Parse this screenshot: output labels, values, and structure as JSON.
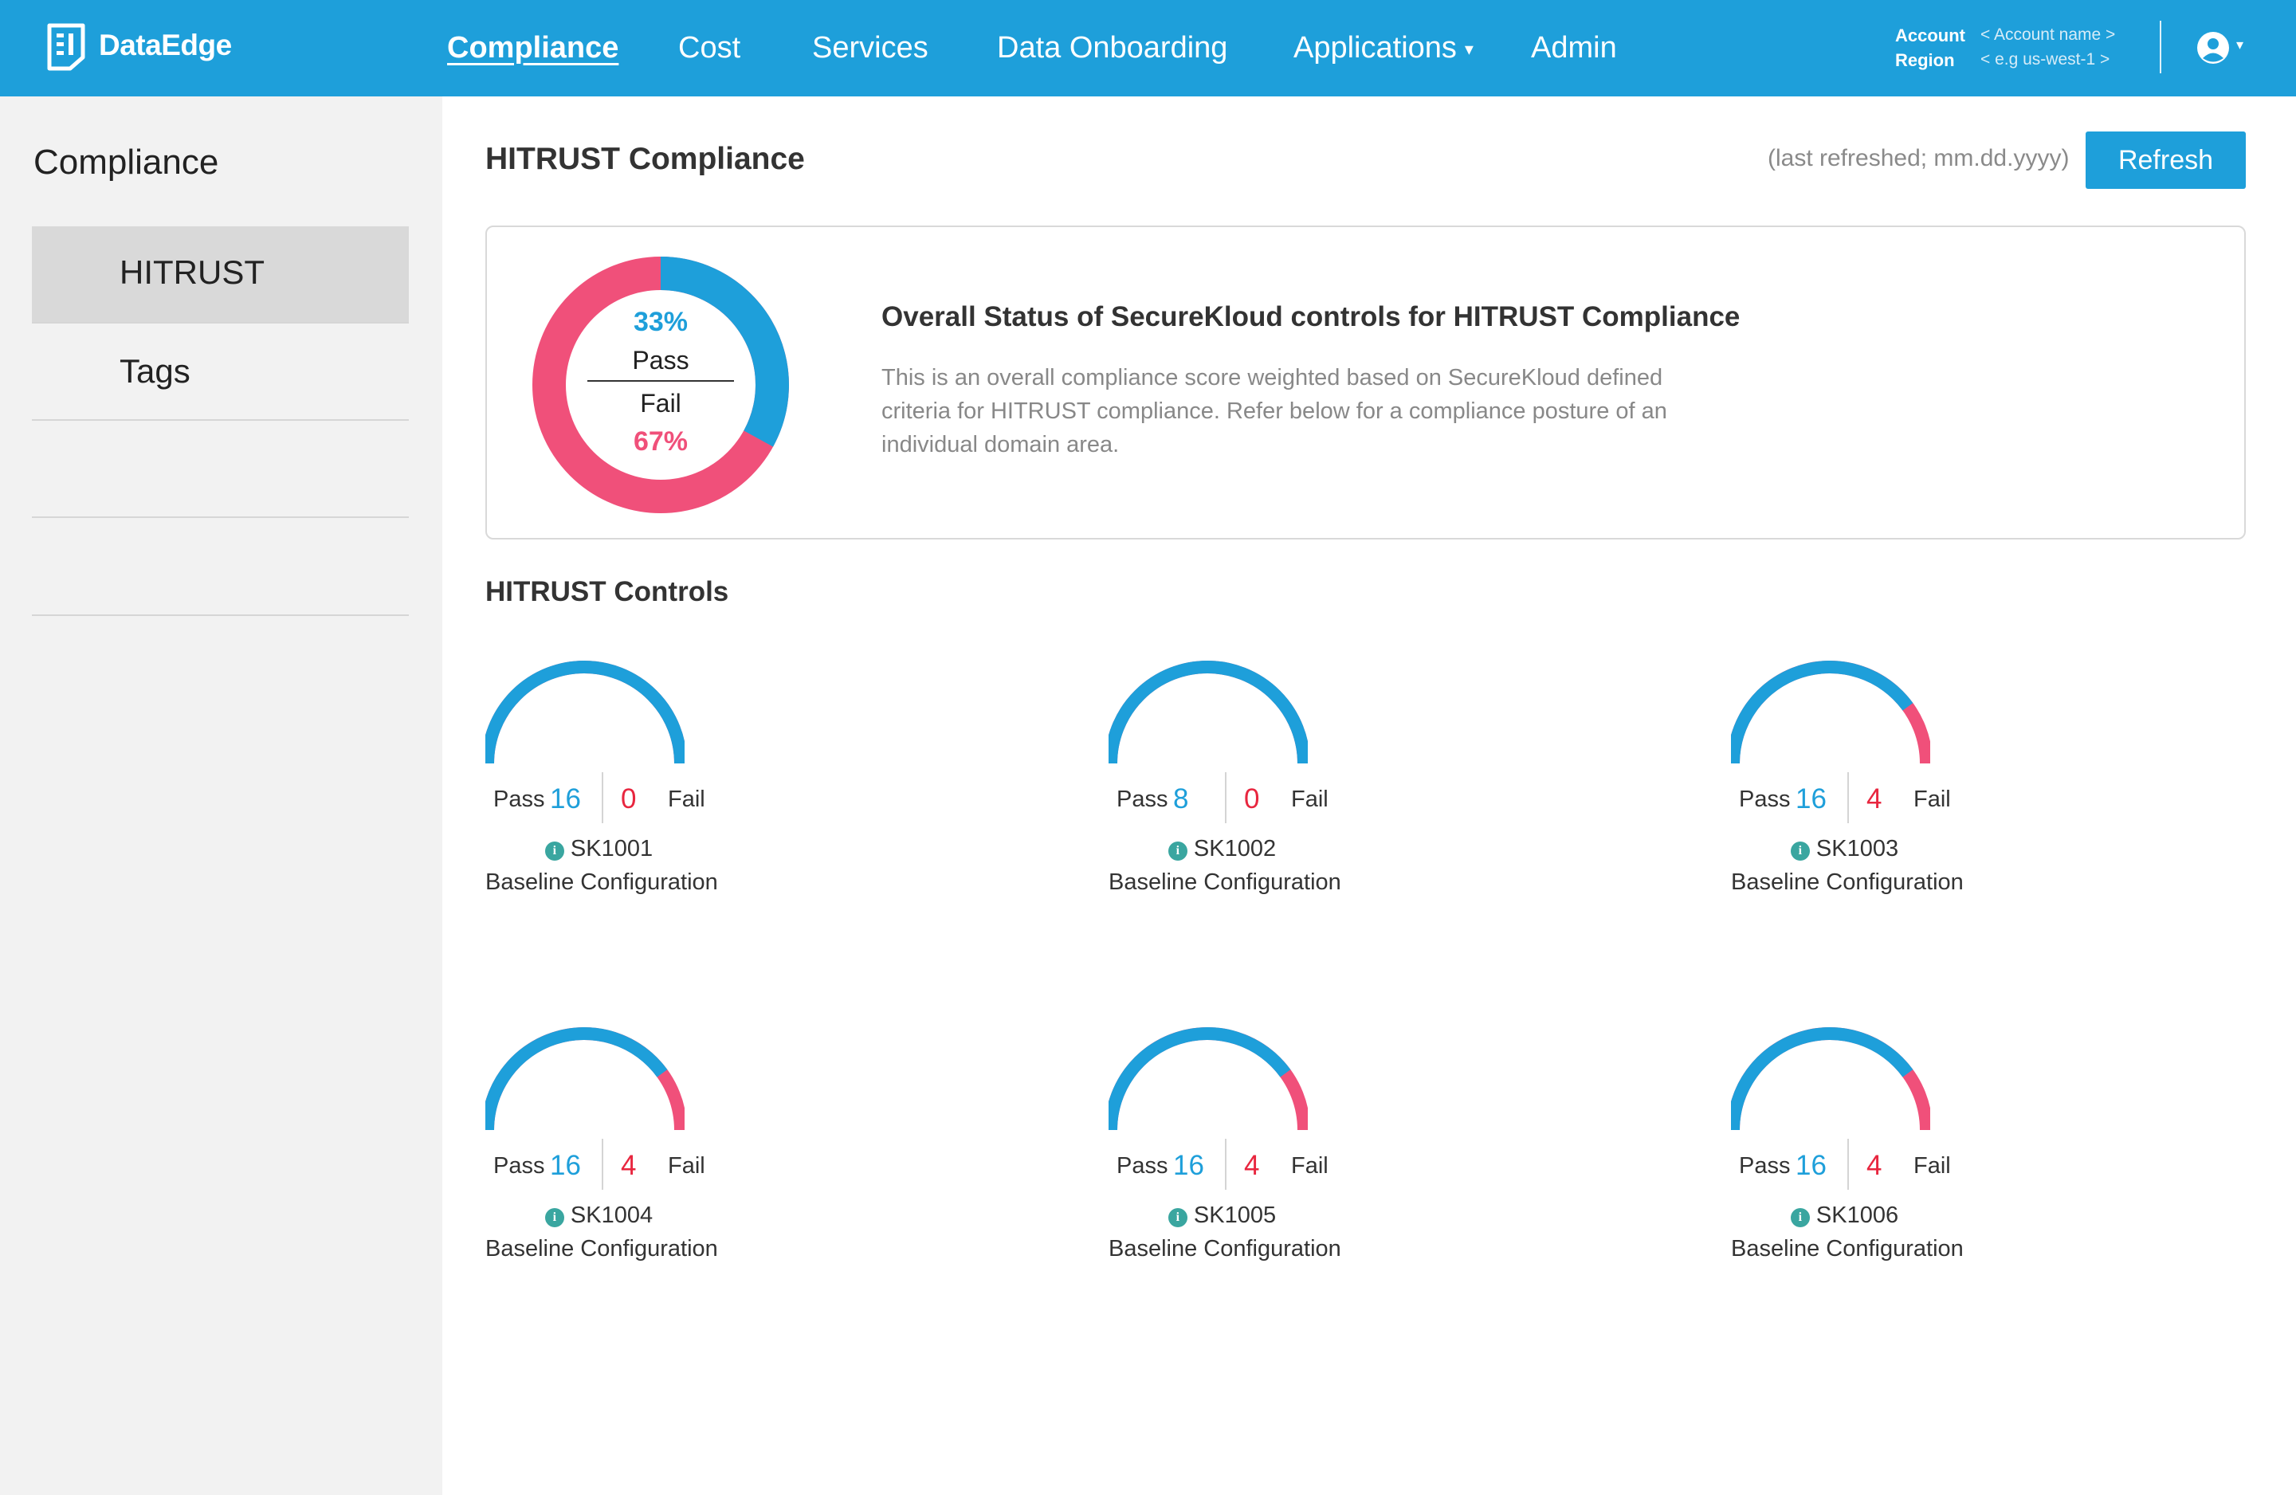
{
  "header": {
    "brand": "DataEdge",
    "nav": [
      {
        "label": "Compliance",
        "active": true
      },
      {
        "label": "Cost"
      },
      {
        "label": "Services"
      },
      {
        "label": "Data Onboarding"
      },
      {
        "label": "Applications",
        "caret": "▾"
      },
      {
        "label": "Admin"
      }
    ],
    "account_label": "Account",
    "account_value": "< Account name >",
    "region_label": "Region",
    "region_value": "<  e.g us-west-1 >",
    "user_icon": "user-circle-icon",
    "user_caret": "▾"
  },
  "sidebar": {
    "title": "Compliance",
    "items": [
      {
        "label": "HITRUST",
        "active": true
      },
      {
        "label": "Tags"
      },
      {
        "label": ""
      },
      {
        "label": ""
      }
    ]
  },
  "main": {
    "title": "HITRUST Compliance",
    "last_refreshed": "(last  refreshed; mm.dd.yyyy)",
    "refresh_label": "Refresh",
    "overall": {
      "pass_pct": "33%",
      "pass_label": "Pass",
      "fail_label": "Fail",
      "fail_pct": "67%",
      "pass_fraction": 0.33,
      "heading": "Overall Status of SecureKloud controls for HITRUST Compliance",
      "description": "This is an overall compliance score weighted based on SecureKloud defined criteria for HITRUST compliance. Refer below for a compliance posture of an individual domain area."
    },
    "controls_title": "HITRUST Controls",
    "pass_label": "Pass",
    "fail_label": "Fail",
    "info_icon": "info-icon",
    "controls": [
      {
        "id": "SK1001",
        "name": "Baseline Configuration",
        "pass": 16,
        "fail": 0
      },
      {
        "id": "SK1002",
        "name": "Baseline Configuration",
        "pass": 8,
        "fail": 0
      },
      {
        "id": "SK1003",
        "name": "Baseline Configuration",
        "pass": 16,
        "fail": 4
      },
      {
        "id": "SK1004",
        "name": "Baseline Configuration",
        "pass": 16,
        "fail": 4
      },
      {
        "id": "SK1005",
        "name": "Baseline Configuration",
        "pass": 16,
        "fail": 4
      },
      {
        "id": "SK1006",
        "name": "Baseline Configuration",
        "pass": 16,
        "fail": 4
      }
    ]
  },
  "colors": {
    "brand_blue": "#1e9fda",
    "fail_pink": "#f0507a",
    "fail_red": "#e8263f",
    "info_teal": "#3aa6a0"
  }
}
